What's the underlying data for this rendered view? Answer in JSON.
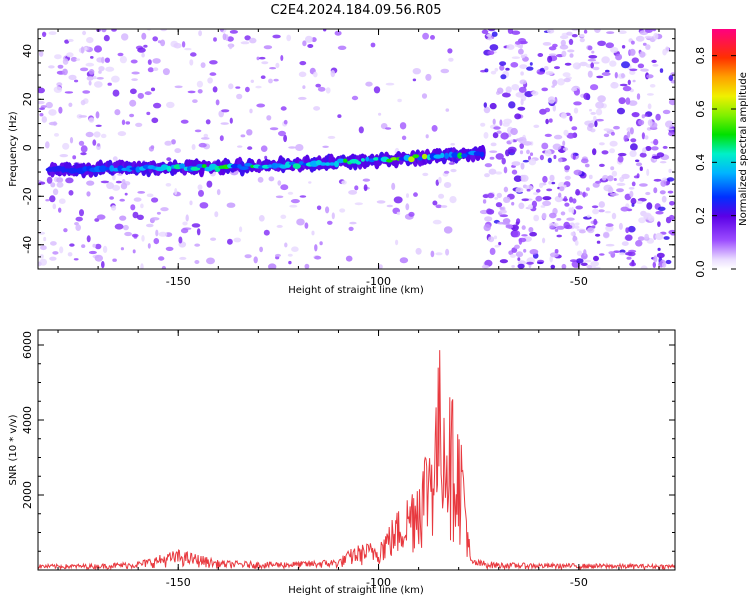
{
  "title": "C2E4.2024.184.09.56.R05",
  "chart_data": [
    {
      "type": "heatmap",
      "xlabel": "Height of straight line (km)",
      "ylabel": "Frequency (Hz)",
      "xlim": [
        -185,
        -26
      ],
      "ylim": [
        -50,
        49
      ],
      "xticks": [
        -150,
        -100,
        -50
      ],
      "yticks": [
        -40,
        -20,
        0,
        20,
        40
      ],
      "colorbar": {
        "label": "Normalized spectral amplitude",
        "range": [
          0.0,
          0.9
        ],
        "ticks": [
          0.0,
          0.2,
          0.4,
          0.6,
          0.8
        ],
        "colormap": "rainbow (white → violet → blue → cyan → green → yellow → red → magenta)"
      },
      "signal_track": {
        "description": "narrow bright band near -8 Hz drifting upward to about -2 Hz",
        "x": [
          -182,
          -160,
          -140,
          -120,
          -100,
          -90,
          -80,
          -74
        ],
        "frequency": [
          -9,
          -8.5,
          -8,
          -7,
          -5,
          -4,
          -3,
          -2
        ],
        "peak_amplitude": [
          0.25,
          0.45,
          0.6,
          0.5,
          0.6,
          0.8,
          0.6,
          0.3
        ]
      },
      "noise_regions": [
        {
          "x": [
            -185,
            -155
          ],
          "level": "scattered low"
        },
        {
          "x": [
            -155,
            -115
          ],
          "level": "sparse, vertical streaks"
        },
        {
          "x": [
            -115,
            -80
          ],
          "level": "sparse"
        },
        {
          "x": [
            -74,
            -26
          ],
          "level": "dense"
        }
      ]
    },
    {
      "type": "line",
      "xlabel": "Height of straight line (km)",
      "ylabel": "SNR (10 * v/v)",
      "xlim": [
        -185,
        -26
      ],
      "ylim": [
        0,
        6400
      ],
      "xticks": [
        -150,
        -100,
        -50
      ],
      "yticks": [
        2000,
        4000,
        6000
      ],
      "color": "#e8393f",
      "series": [
        {
          "x": [
            -185,
            -170,
            -160,
            -150,
            -145,
            -140,
            -130,
            -120,
            -110,
            -106,
            -100,
            -96,
            -93,
            -90,
            -88,
            -86,
            -84.5,
            -83,
            -81,
            -79,
            -77,
            -70,
            -60,
            -50,
            -40,
            -26
          ],
          "values": [
            150,
            160,
            230,
            550,
            420,
            260,
            220,
            230,
            300,
            650,
            800,
            1500,
            2000,
            2800,
            3500,
            4500,
            6300,
            5000,
            4500,
            3500,
            300,
            200,
            180,
            170,
            160,
            150
          ]
        }
      ]
    }
  ]
}
